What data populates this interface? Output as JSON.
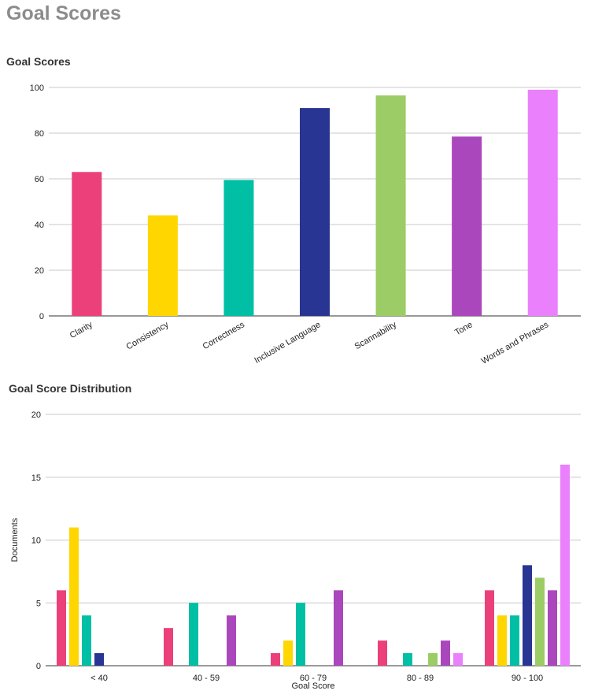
{
  "page": {
    "title": "Goal Scores"
  },
  "chart_data": [
    {
      "type": "bar",
      "title": "Goal Scores",
      "categories": [
        "Clarity",
        "Consistency",
        "Correctness",
        "Inclusive Language",
        "Scannability",
        "Tone",
        "Words and Phrases"
      ],
      "values": [
        63,
        44,
        59.5,
        91,
        96.5,
        78.5,
        99
      ],
      "colors": [
        "#ec407a",
        "#ffd600",
        "#00bfa5",
        "#283593",
        "#9ccc65",
        "#ab47bc",
        "#ea80fc"
      ],
      "yticks": [
        0,
        20,
        40,
        60,
        80,
        100
      ],
      "ylim": [
        0,
        100
      ],
      "grid": true,
      "xlabel": "",
      "ylabel": ""
    },
    {
      "type": "bar",
      "title": "Goal Score Distribution",
      "categories": [
        "< 40",
        "40 - 59",
        "60 - 79",
        "80 - 89",
        "90 - 100"
      ],
      "series": [
        {
          "color": "#ec407a",
          "values": [
            6,
            3,
            1,
            2,
            6
          ]
        },
        {
          "color": "#ffd600",
          "values": [
            11,
            0,
            2,
            0,
            4
          ]
        },
        {
          "color": "#00bfa5",
          "values": [
            4,
            5,
            5,
            1,
            4
          ]
        },
        {
          "color": "#283593",
          "values": [
            1,
            0,
            0,
            0,
            8
          ]
        },
        {
          "color": "#9ccc65",
          "values": [
            0,
            0,
            0,
            1,
            7
          ]
        },
        {
          "color": "#ab47bc",
          "values": [
            0,
            4,
            6,
            2,
            6
          ]
        },
        {
          "color": "#ea80fc",
          "values": [
            0,
            0,
            0,
            1,
            16
          ]
        }
      ],
      "yticks": [
        0,
        5,
        10,
        15,
        20
      ],
      "ylim": [
        0,
        20
      ],
      "grid": true,
      "xlabel": "Goal Score",
      "ylabel": "Documents"
    }
  ]
}
